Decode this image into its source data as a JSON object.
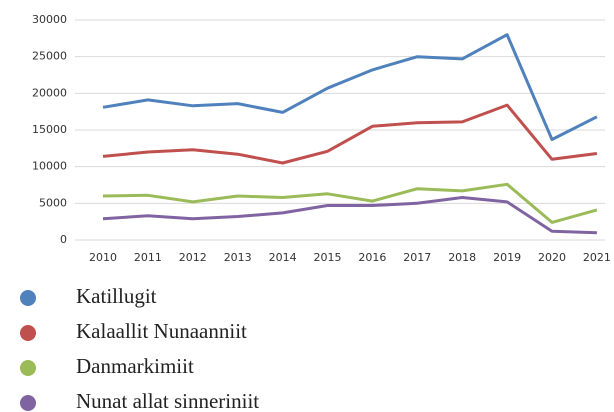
{
  "chart_data": {
    "type": "line",
    "categories": [
      "2010",
      "2011",
      "2012",
      "2013",
      "2014",
      "2015",
      "2016",
      "2017",
      "2018",
      "2019",
      "2020",
      "2021"
    ],
    "series": [
      {
        "name": "Katillugit",
        "color": "#4f81bd",
        "values": [
          18100,
          19100,
          18300,
          18600,
          17400,
          20700,
          23200,
          25000,
          24700,
          28000,
          13700,
          16800
        ]
      },
      {
        "name": "Kalaallit Nunaanniit",
        "color": "#c0504d",
        "values": [
          11400,
          12000,
          12300,
          11700,
          10500,
          12100,
          15500,
          16000,
          16100,
          18400,
          11000,
          11800
        ]
      },
      {
        "name": "Danmarkimiit",
        "color": "#9bbb59",
        "values": [
          6000,
          6100,
          5200,
          6000,
          5800,
          6300,
          5300,
          7000,
          6700,
          7600,
          2400,
          4100
        ]
      },
      {
        "name": "Nunat allat sinneriniit",
        "color": "#8064a2",
        "values": [
          2900,
          3300,
          2900,
          3200,
          3700,
          4700,
          4700,
          5000,
          5800,
          5200,
          1200,
          1000
        ]
      }
    ],
    "ylim": [
      0,
      30000
    ],
    "yticks": [
      0,
      5000,
      10000,
      15000,
      20000,
      25000,
      30000
    ],
    "grid": true,
    "legend": "bottom"
  }
}
